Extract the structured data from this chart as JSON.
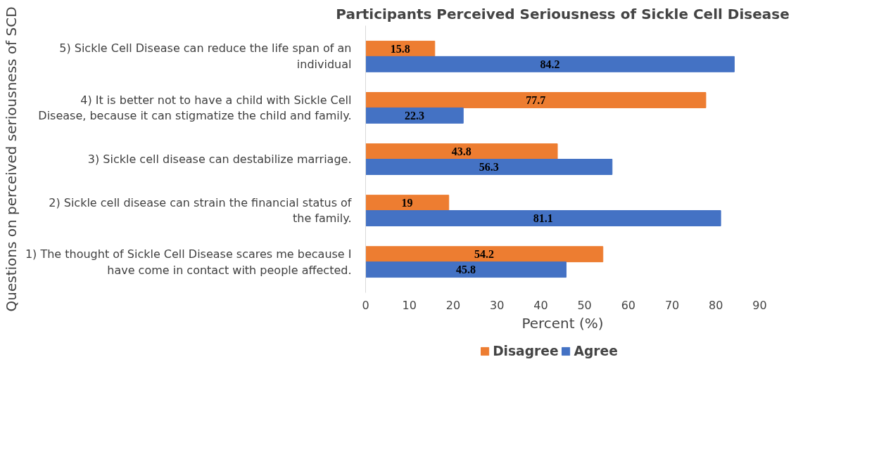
{
  "chart_data": {
    "type": "bar",
    "orientation": "horizontal",
    "title": "Participants Perceived Seriousness of Sickle Cell Disease",
    "xlabel": "Percent (%)",
    "ylabel": "Questions on perceived seriousness of SCD",
    "categories": [
      "5) Sickle Cell Disease can reduce the life span of an individual",
      "4) It is better not to have a child with Sickle Cell Disease, because it can stigmatize the child and family.",
      "3) Sickle cell disease can destabilize marriage.",
      "2) Sickle cell disease can strain the financial status of the family.",
      "1) The thought of Sickle Cell Disease scares me because I have come in contact with people affected."
    ],
    "series": [
      {
        "name": "Disagree",
        "color": "#ed7d31",
        "values": [
          15.8,
          77.7,
          43.8,
          19,
          54.2
        ]
      },
      {
        "name": "Agree",
        "color": "#4472c4",
        "values": [
          84.2,
          22.3,
          56.3,
          81.1,
          45.8
        ]
      }
    ],
    "xlim": [
      0,
      90
    ],
    "xticks": [
      0,
      10,
      20,
      30,
      40,
      50,
      60,
      70,
      80,
      90
    ],
    "grid": false,
    "legend": "bottom",
    "data_labels": true
  }
}
